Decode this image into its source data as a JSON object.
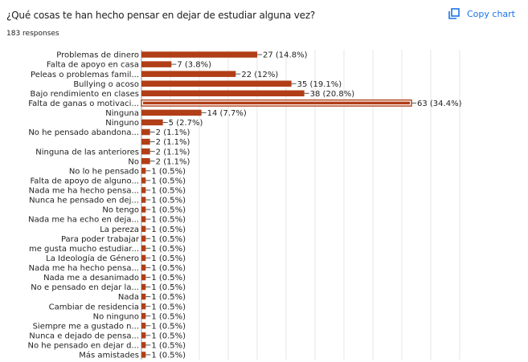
{
  "header": {
    "title": "¿Qué cosas te han hecho pensar en dejar de estudiar alguna vez?",
    "responses": "183 responses",
    "copy_label": "Copy chart",
    "copy_icon": "copy-icon"
  },
  "colors": {
    "bar": "#b13e16",
    "grid": "#e6e6e6",
    "axis": "#999999",
    "label": "#222222",
    "accent": "#1a73e8"
  },
  "chart_data": {
    "type": "bar",
    "orientation": "horizontal",
    "grid": true,
    "xlim": [
      0,
      63
    ],
    "categories": [
      "Problemas de dinero",
      "Falta de apoyo en casa",
      "Peleas o problemas famil...",
      "Bullying o acoso",
      "Bajo rendimiento en clases",
      "Falta de ganas o motivaci...",
      "Ninguna",
      "Ninguno",
      "No he pensado abandona...",
      "",
      "Ninguna de las anteriores",
      "No",
      "No lo he pensado",
      "Falta de apoyo de alguno...",
      "Nada me ha hecho pensa...",
      "Nunca he pensado en dej...",
      "No tengo",
      "Nada me ha echo en deja...",
      "La pereza",
      "Para poder trabajar",
      "me gusta mucho estudiar...",
      "La Ideología de Género",
      "Nada me ha hecho pensa...",
      "Nada me a desanimado",
      "No e pensado en dejar la...",
      "Nada",
      "Cambiar de residencia",
      "No ninguno",
      "Siempre me a gustado n...",
      "Nunca e dejado de pensa...",
      "No he pensado en dejar d...",
      "Más amistades"
    ],
    "values": [
      27,
      7,
      22,
      35,
      38,
      63,
      14,
      5,
      2,
      2,
      2,
      2,
      1,
      1,
      1,
      1,
      1,
      1,
      1,
      1,
      1,
      1,
      1,
      1,
      1,
      1,
      1,
      1,
      1,
      1,
      1,
      1
    ],
    "data_labels": [
      "27 (14.8%)",
      "7 (3.8%)",
      "22 (12%)",
      "35 (19.1%)",
      "38 (20.8%)",
      "63 (34.4%)",
      "14 (7.7%)",
      "5 (2.7%)",
      "2 (1.1%)",
      "2 (1.1%)",
      "2 (1.1%)",
      "2 (1.1%)",
      "1 (0.5%)",
      "1 (0.5%)",
      "1 (0.5%)",
      "1 (0.5%)",
      "1 (0.5%)",
      "1 (0.5%)",
      "1 (0.5%)",
      "1 (0.5%)",
      "1 (0.5%)",
      "1 (0.5%)",
      "1 (0.5%)",
      "1 (0.5%)",
      "1 (0.5%)",
      "1 (0.5%)",
      "1 (0.5%)",
      "1 (0.5%)",
      "1 (0.5%)",
      "1 (0.5%)",
      "1 (0.5%)",
      "1 (0.5%)"
    ],
    "highlighted_index": 5
  }
}
